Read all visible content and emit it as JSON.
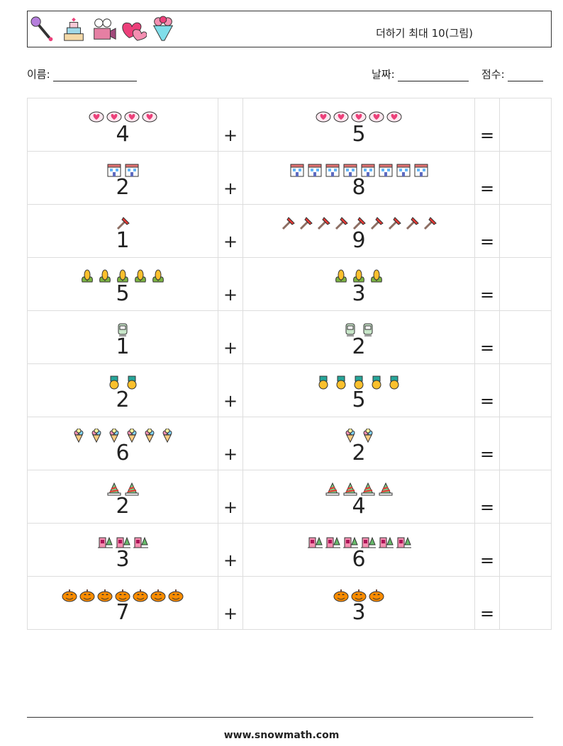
{
  "header": {
    "title": "더하기 최대 10(그림)",
    "icons": [
      "microphone-icon",
      "cake-icon",
      "movie-camera-icon",
      "hearts-icon",
      "bouquet-icon"
    ]
  },
  "form": {
    "name_label": "이름:",
    "date_label": "날짜:",
    "score_label": "점수:"
  },
  "rows": [
    {
      "a": "4",
      "b": "5",
      "icon": "heart-bubble",
      "op": "+",
      "eq": "="
    },
    {
      "a": "2",
      "b": "8",
      "icon": "building",
      "op": "+",
      "eq": "="
    },
    {
      "a": "1",
      "b": "9",
      "icon": "axe",
      "op": "+",
      "eq": "="
    },
    {
      "a": "5",
      "b": "3",
      "icon": "corn",
      "op": "+",
      "eq": "="
    },
    {
      "a": "1",
      "b": "2",
      "icon": "tram",
      "op": "+",
      "eq": "="
    },
    {
      "a": "2",
      "b": "5",
      "icon": "medal",
      "op": "+",
      "eq": "="
    },
    {
      "a": "6",
      "b": "2",
      "icon": "ice-cream",
      "op": "+",
      "eq": "="
    },
    {
      "a": "2",
      "b": "4",
      "icon": "party-hat",
      "op": "+",
      "eq": "="
    },
    {
      "a": "3",
      "b": "6",
      "icon": "door-tree",
      "op": "+",
      "eq": "="
    },
    {
      "a": "7",
      "b": "3",
      "icon": "pumpkin",
      "op": "+",
      "eq": "="
    }
  ],
  "footer": {
    "url": "www.snowmath.com"
  }
}
